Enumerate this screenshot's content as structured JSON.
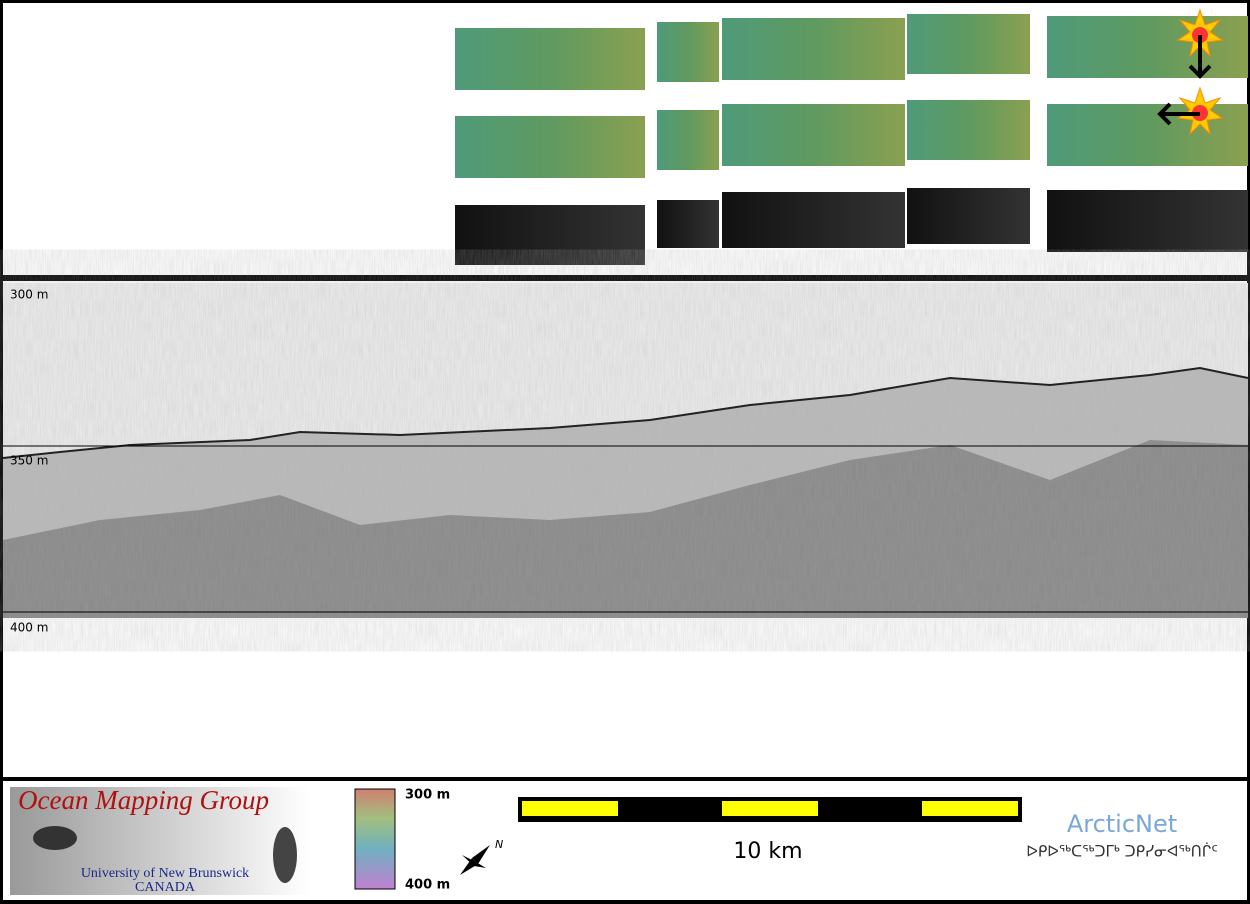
{
  "profile": {
    "depth_labels": [
      "300 m",
      "350 m",
      "400 m"
    ]
  },
  "colorbar": {
    "top_label": "300 m",
    "bottom_label": "400 m"
  },
  "scale_bar": {
    "label": "10 km"
  },
  "logos": {
    "omg_title": "Ocean Mapping Group",
    "omg_university": "University of New Brunswick",
    "omg_country": "CANADA",
    "arcticnet": "ArcticNet",
    "arcticnet_syllabics": "ᐅᑭᐅᖅᑕᖅᑐᒥᒃ ᑐᑭᓯᓂᐊᖅᑎᒌᑦ"
  }
}
